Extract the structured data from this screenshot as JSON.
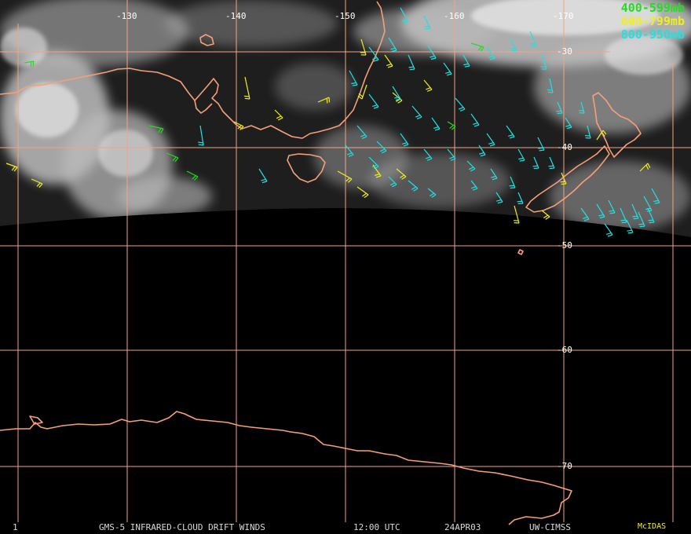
{
  "colors": {
    "coast": "#f5a07a",
    "grid": "#f0a583",
    "cloud": "#cfcfcf",
    "band_400_599": "#22dd22",
    "band_600_799": "#eeee22",
    "band_800_950": "#22e0e0",
    "brand": "#eeee44"
  },
  "legend": [
    {
      "text": "400-599mb",
      "color": "#22dd22"
    },
    {
      "text": "600-799mb",
      "color": "#eeee22"
    },
    {
      "text": "800-950mb",
      "color": "#22e0e0"
    }
  ],
  "lon_labels": [
    "-130",
    "-140",
    "-150",
    "-160",
    "-170"
  ],
  "lat_labels": [
    "-30",
    "-40",
    "-50",
    "-60",
    "-70"
  ],
  "footer": {
    "frame": "1",
    "product": "GMS-5 INFRARED-CLOUD DRIFT WINDS",
    "time": "12:00 UTC",
    "date": "24APR03",
    "source": "UW-CIMSS",
    "brand": "McIDAS"
  },
  "wind_barbs": {
    "band_400_599": [
      [
        31,
        80,
        12,
        -2
      ],
      [
        190,
        160,
        18,
        4
      ],
      [
        212,
        195,
        15,
        6
      ],
      [
        600,
        55,
        16,
        5
      ],
      [
        238,
        218,
        14,
        7
      ],
      [
        570,
        155,
        10,
        6
      ]
    ],
    "band_600_799": [
      [
        8,
        208,
        14,
        5
      ],
      [
        40,
        228,
        14,
        6
      ],
      [
        312,
        98,
        6,
        28
      ],
      [
        350,
        140,
        10,
        10
      ],
      [
        405,
        130,
        14,
        -6
      ],
      [
        460,
        50,
        6,
        20
      ],
      [
        467,
        108,
        -6,
        18
      ],
      [
        490,
        70,
        10,
        14
      ],
      [
        500,
        118,
        12,
        10
      ],
      [
        540,
        102,
        10,
        12
      ],
      [
        430,
        218,
        18,
        10
      ],
      [
        455,
        238,
        14,
        10
      ],
      [
        475,
        210,
        10,
        14
      ],
      [
        505,
        215,
        12,
        10
      ],
      [
        655,
        262,
        6,
        22
      ],
      [
        760,
        178,
        8,
        -12
      ],
      [
        815,
        218,
        10,
        -10
      ],
      [
        298,
        155,
        12,
        6
      ],
      [
        715,
        220,
        6,
        14
      ],
      [
        690,
        268,
        10,
        8
      ]
    ],
    "band_800_950": [
      [
        510,
        10,
        10,
        18
      ],
      [
        540,
        20,
        8,
        16
      ],
      [
        470,
        60,
        12,
        16
      ],
      [
        495,
        48,
        10,
        16
      ],
      [
        520,
        70,
        8,
        18
      ],
      [
        545,
        58,
        10,
        16
      ],
      [
        565,
        80,
        10,
        14
      ],
      [
        590,
        70,
        8,
        14
      ],
      [
        620,
        60,
        10,
        14
      ],
      [
        650,
        50,
        8,
        14
      ],
      [
        675,
        40,
        8,
        18
      ],
      [
        690,
        70,
        6,
        18
      ],
      [
        700,
        100,
        4,
        18
      ],
      [
        710,
        130,
        6,
        14
      ],
      [
        720,
        150,
        8,
        12
      ],
      [
        740,
        130,
        4,
        14
      ],
      [
        748,
        160,
        4,
        16
      ],
      [
        445,
        90,
        10,
        18
      ],
      [
        470,
        120,
        12,
        16
      ],
      [
        500,
        110,
        10,
        16
      ],
      [
        525,
        135,
        12,
        14
      ],
      [
        550,
        150,
        10,
        14
      ],
      [
        580,
        125,
        12,
        14
      ],
      [
        600,
        145,
        10,
        14
      ],
      [
        620,
        170,
        10,
        14
      ],
      [
        645,
        160,
        10,
        14
      ],
      [
        660,
        190,
        8,
        14
      ],
      [
        685,
        175,
        8,
        16
      ],
      [
        700,
        200,
        6,
        14
      ],
      [
        455,
        160,
        12,
        14
      ],
      [
        480,
        180,
        12,
        12
      ],
      [
        510,
        170,
        10,
        14
      ],
      [
        540,
        190,
        10,
        12
      ],
      [
        570,
        190,
        10,
        12
      ],
      [
        595,
        205,
        10,
        10
      ],
      [
        625,
        215,
        8,
        12
      ],
      [
        650,
        225,
        6,
        14
      ],
      [
        440,
        185,
        10,
        12
      ],
      [
        470,
        200,
        12,
        12
      ],
      [
        495,
        225,
        10,
        10
      ],
      [
        520,
        230,
        12,
        10
      ],
      [
        545,
        240,
        10,
        8
      ],
      [
        600,
        230,
        8,
        10
      ],
      [
        632,
        245,
        8,
        12
      ],
      [
        660,
        245,
        6,
        14
      ],
      [
        740,
        265,
        10,
        14
      ],
      [
        760,
        260,
        10,
        16
      ],
      [
        775,
        255,
        8,
        16
      ],
      [
        790,
        265,
        8,
        18
      ],
      [
        805,
        260,
        8,
        18
      ],
      [
        820,
        250,
        10,
        18
      ],
      [
        830,
        240,
        10,
        18
      ],
      [
        798,
        280,
        8,
        16
      ],
      [
        813,
        270,
        8,
        18
      ],
      [
        825,
        265,
        8,
        18
      ],
      [
        770,
        285,
        10,
        14
      ],
      [
        330,
        215,
        10,
        16
      ],
      [
        255,
        160,
        4,
        25
      ],
      [
        680,
        200,
        6,
        14
      ],
      [
        610,
        185,
        8,
        12
      ]
    ]
  }
}
